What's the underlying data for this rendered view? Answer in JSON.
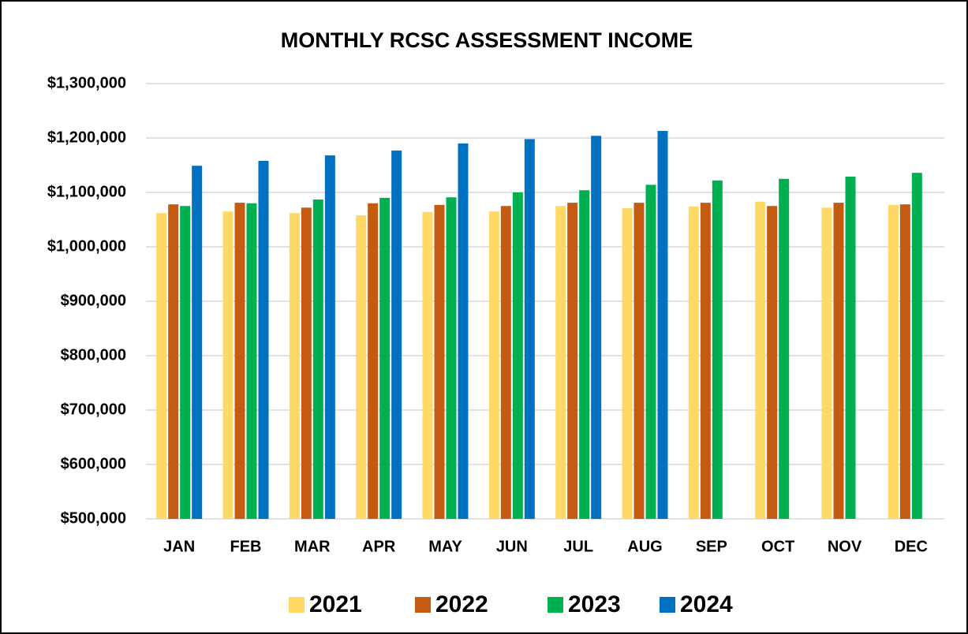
{
  "chart_data": {
    "type": "bar",
    "title": "MONTHLY RCSC ASSESSMENT INCOME",
    "categories": [
      "JAN",
      "FEB",
      "MAR",
      "APR",
      "MAY",
      "JUN",
      "JUL",
      "AUG",
      "SEP",
      "OCT",
      "NOV",
      "DEC"
    ],
    "series": [
      {
        "name": "2021",
        "color": "#ffd966",
        "values": [
          1062000,
          1065000,
          1062000,
          1058000,
          1064000,
          1065000,
          1075000,
          1071000,
          1074000,
          1083000,
          1072000,
          1077000
        ]
      },
      {
        "name": "2022",
        "color": "#c55a11",
        "values": [
          1078000,
          1081000,
          1072000,
          1080000,
          1077000,
          1075000,
          1081000,
          1081000,
          1081000,
          1075000,
          1081000,
          1078000
        ]
      },
      {
        "name": "2023",
        "color": "#00b050",
        "values": [
          1075000,
          1080000,
          1087000,
          1090000,
          1091000,
          1100000,
          1104000,
          1114000,
          1122000,
          1125000,
          1129000,
          1136000
        ]
      },
      {
        "name": "2024",
        "color": "#0070c0",
        "values": [
          1149000,
          1158000,
          1168000,
          1177000,
          1190000,
          1198000,
          1204000,
          1213000,
          null,
          null,
          null,
          null
        ]
      }
    ],
    "ylim": [
      500000,
      1300000
    ],
    "yticks": [
      {
        "value": 500000,
        "label": "$500,000"
      },
      {
        "value": 600000,
        "label": "$600,000"
      },
      {
        "value": 700000,
        "label": "$700,000"
      },
      {
        "value": 800000,
        "label": "$800,000"
      },
      {
        "value": 900000,
        "label": "$900,000"
      },
      {
        "value": 1000000,
        "label": "$1,000,000"
      },
      {
        "value": 1100000,
        "label": "$1,100,000"
      },
      {
        "value": 1200000,
        "label": "$1,200,000"
      },
      {
        "value": 1300000,
        "label": "$1,300,000"
      }
    ],
    "grid": true,
    "legend": "bottom"
  }
}
